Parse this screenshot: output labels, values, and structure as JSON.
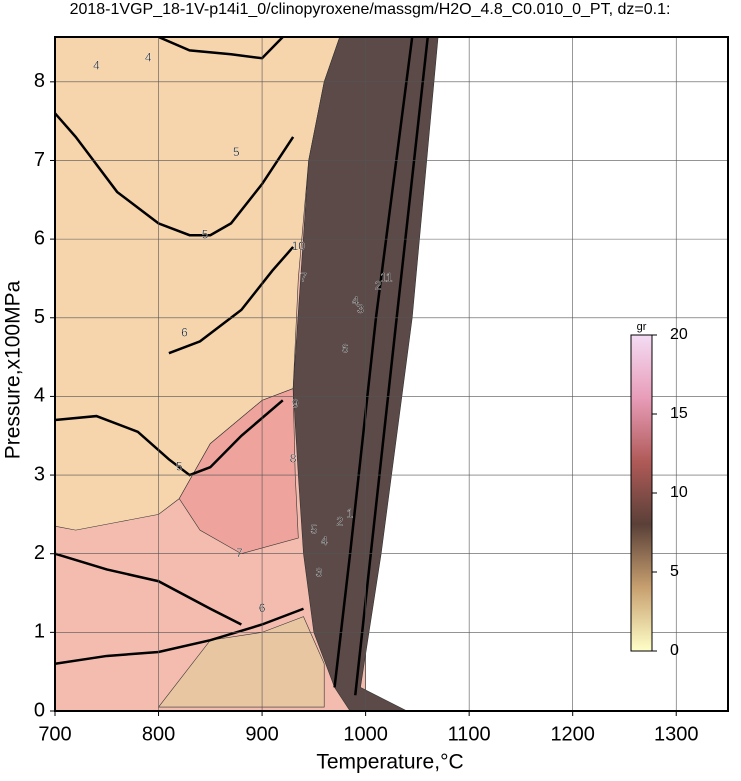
{
  "chart_data": {
    "type": "contour",
    "title": "2018-1VGP_18-1V-p14i1_0/clinopyroxene/massgm/H2O_4.8_C0.010_0_PT, dz=0.1:",
    "x_label": "Temperature,°C",
    "y_label": "Pressure,x100MPa",
    "xlim": [
      700,
      1350
    ],
    "ylim": [
      0,
      8.57
    ],
    "xticks": [
      700,
      800,
      900,
      1000,
      1100,
      1200,
      1300
    ],
    "yticks": [
      0,
      1,
      2,
      3,
      4,
      5,
      6,
      7,
      8
    ],
    "grid": true,
    "regions": [
      {
        "color": "#f4bcae",
        "x": [
          700,
          700,
          975,
          1000,
          1000,
          700
        ],
        "y": [
          0,
          8.57,
          8.57,
          4,
          0,
          0
        ]
      },
      {
        "color": "#f6d5ac",
        "x": [
          700,
          700,
          975,
          960,
          945,
          935,
          930,
          900,
          850,
          820,
          800,
          760,
          720
        ],
        "y": [
          2.35,
          8.57,
          8.57,
          8.0,
          7.0,
          5.5,
          4.1,
          3.95,
          3.4,
          2.7,
          2.5,
          2.4,
          2.3
        ]
      },
      {
        "color": "#eea39c",
        "x": [
          820,
          850,
          900,
          930,
          932,
          935,
          880,
          840
        ],
        "y": [
          2.7,
          3.4,
          3.95,
          4.1,
          3.0,
          2.2,
          2.0,
          2.3
        ]
      },
      {
        "color": "#e9c6a2",
        "x": [
          800,
          850,
          900,
          940,
          960,
          960,
          800
        ],
        "y": [
          0.05,
          0.9,
          1.0,
          1.2,
          0.6,
          0.05,
          0.05
        ]
      },
      {
        "color": "#5b4a48",
        "x": [
          975,
          1070,
          1045,
          1015,
          995,
          1040,
          985,
          970,
          950,
          940,
          935,
          930,
          945,
          960
        ],
        "y": [
          8.57,
          8.57,
          5,
          2,
          0.3,
          0,
          0,
          0.3,
          1,
          2,
          3,
          4.1,
          7,
          8
        ]
      }
    ],
    "contour_lines": [
      {
        "x": [
          700,
          720,
          760,
          800,
          830,
          850,
          870,
          900,
          930
        ],
        "y": [
          7.6,
          7.3,
          6.6,
          6.2,
          6.05,
          6.05,
          6.2,
          6.7,
          7.3
        ]
      },
      {
        "x": [
          700,
          740,
          780,
          810,
          830,
          850,
          880,
          920
        ],
        "y": [
          3.7,
          3.75,
          3.55,
          3.2,
          3.0,
          3.1,
          3.5,
          3.95
        ]
      },
      {
        "x": [
          800,
          830,
          870,
          900,
          920
        ],
        "y": [
          8.57,
          8.4,
          8.35,
          8.3,
          8.57
        ]
      },
      {
        "x": [
          810,
          840,
          880,
          910,
          930
        ],
        "y": [
          4.55,
          4.7,
          5.1,
          5.6,
          5.9
        ]
      },
      {
        "x": [
          700,
          750,
          800,
          850,
          900,
          940
        ],
        "y": [
          0.6,
          0.7,
          0.75,
          0.9,
          1.1,
          1.3
        ]
      },
      {
        "x": [
          700,
          750,
          800,
          850,
          880
        ],
        "y": [
          2.0,
          1.8,
          1.65,
          1.3,
          1.1
        ]
      },
      {
        "x": [
          990,
          1005,
          1030,
          1060
        ],
        "y": [
          0.2,
          2.0,
          5.0,
          8.57
        ]
      },
      {
        "x": [
          970,
          985,
          1010,
          1045
        ],
        "y": [
          0.3,
          2.0,
          5.0,
          8.57
        ]
      }
    ],
    "contour_labels": {
      "x": [
        740,
        790,
        875,
        845,
        825,
        820,
        940,
        935,
        932,
        930,
        878,
        900,
        950,
        960,
        955,
        975,
        985,
        1020,
        1012,
        995,
        990,
        980
      ],
      "y": [
        8.2,
        8.3,
        7.1,
        6.05,
        4.8,
        3.1,
        5.5,
        5.9,
        3.9,
        3.2,
        2.0,
        1.3,
        2.3,
        2.15,
        1.75,
        2.4,
        2.5,
        5.5,
        5.4,
        5.1,
        5.2,
        4.6
      ],
      "labels": [
        4,
        4,
        5,
        5,
        6,
        5,
        7,
        10,
        9,
        8,
        7,
        6,
        5,
        4,
        3,
        2,
        1,
        11,
        2,
        3,
        4,
        6
      ]
    },
    "colorbar": {
      "label": "gr",
      "lim": [
        0,
        20
      ],
      "ticks": [
        0,
        5,
        10,
        15,
        20
      ],
      "colors": [
        "#ffffc8",
        "#c8a070",
        "#5a4038",
        "#b05a58",
        "#e89cb8",
        "#f4dcf4"
      ]
    }
  }
}
